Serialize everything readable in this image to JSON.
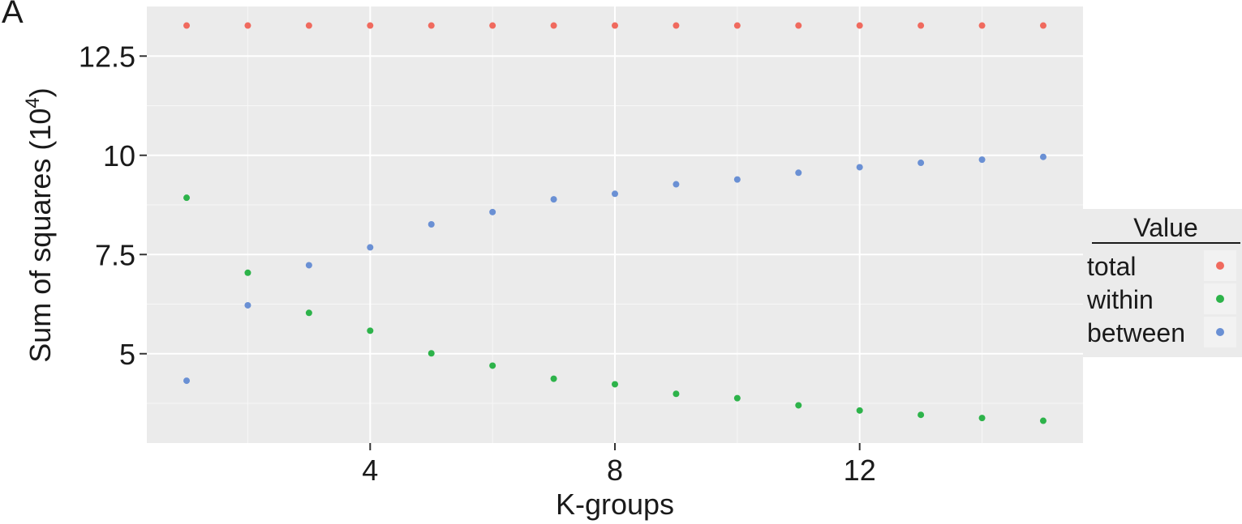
{
  "panel_label": "A",
  "chart_data": {
    "type": "scatter",
    "xlabel": "K-groups",
    "ylabel_main": "Sum of squares (10",
    "ylabel_sup": "4",
    "ylabel_close": ")",
    "xlim": [
      0.35,
      15.65
    ],
    "ylim": [
      2.75,
      13.75
    ],
    "xticks": [
      4,
      8,
      12
    ],
    "xtick_labels": [
      "4",
      "8",
      "12"
    ],
    "yticks": [
      5,
      7.5,
      10,
      12.5
    ],
    "ytick_labels": [
      "5",
      "7.5",
      "10",
      "12.5"
    ],
    "grid": true,
    "legend": {
      "title": "Value",
      "position": "right"
    },
    "x": [
      1,
      2,
      3,
      4,
      5,
      6,
      7,
      8,
      9,
      10,
      11,
      12,
      13,
      14,
      15
    ],
    "series": [
      {
        "name": "total",
        "color": "#f06a5e",
        "values": [
          13.27,
          13.27,
          13.27,
          13.27,
          13.27,
          13.27,
          13.27,
          13.27,
          13.27,
          13.27,
          13.27,
          13.27,
          13.27,
          13.27,
          13.27
        ]
      },
      {
        "name": "within",
        "color": "#2db34a",
        "values": [
          8.93,
          7.04,
          6.03,
          5.58,
          5.01,
          4.7,
          4.37,
          4.23,
          3.99,
          3.88,
          3.7,
          3.57,
          3.46,
          3.38,
          3.31
        ]
      },
      {
        "name": "between",
        "color": "#6a90d4",
        "values": [
          4.32,
          6.22,
          7.23,
          7.68,
          8.26,
          8.57,
          8.89,
          9.03,
          9.27,
          9.39,
          9.56,
          9.7,
          9.81,
          9.89,
          9.96
        ]
      }
    ]
  }
}
